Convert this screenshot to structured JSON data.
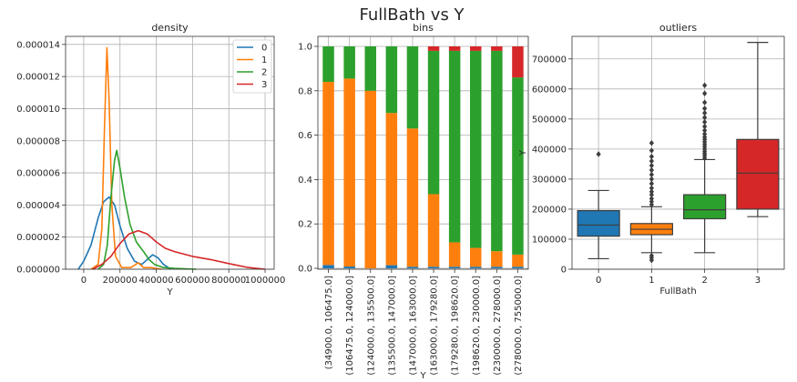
{
  "suptitle": "FullBath   vs   Y",
  "colors": {
    "c0": "#1f77b4",
    "c1": "#ff7f0e",
    "c2": "#2ca02c",
    "c3": "#d62728",
    "grid": "#b0b0b0",
    "frame": "#333333"
  },
  "chart_data": [
    {
      "type": "line",
      "title": "density",
      "xlabel": "Y",
      "ylabel": "",
      "xlim": [
        -100000,
        1050000
      ],
      "ylim": [
        0,
        1.45e-05
      ],
      "xticks": [
        0,
        200000,
        400000,
        600000,
        800000,
        1000000
      ],
      "xtick_labels": [
        "0",
        "200000",
        "400000",
        "600000",
        "800000",
        "1000000"
      ],
      "yticks": [
        0,
        2e-06,
        4e-06,
        6e-06,
        8e-06,
        1e-05,
        1.2e-05,
        1.4e-05
      ],
      "ytick_labels": [
        "0.000000",
        "0.000002",
        "0.000004",
        "0.000006",
        "0.000008",
        "0.000010",
        "0.000012",
        "0.000014"
      ],
      "grid": true,
      "legend": "top-right",
      "series": [
        {
          "name": "0",
          "color": "c0",
          "points": [
            [
              -30000,
              0
            ],
            [
              0,
              5e-07
            ],
            [
              40000,
              1.5e-06
            ],
            [
              80000,
              3.2e-06
            ],
            [
              110000,
              4.2e-06
            ],
            [
              140000,
              4.5e-06
            ],
            [
              170000,
              4e-06
            ],
            [
              200000,
              2.7e-06
            ],
            [
              240000,
              1.3e-06
            ],
            [
              280000,
              5e-07
            ],
            [
              320000,
              3e-07
            ],
            [
              350000,
              6e-07
            ],
            [
              380000,
              9e-07
            ],
            [
              410000,
              7e-07
            ],
            [
              440000,
              3e-07
            ],
            [
              480000,
              0
            ]
          ]
        },
        {
          "name": "1",
          "color": "c1",
          "points": [
            [
              40000,
              0
            ],
            [
              80000,
              3e-07
            ],
            [
              100000,
              2.5e-06
            ],
            [
              115000,
              9e-06
            ],
            [
              128000,
              1.38e-05
            ],
            [
              140000,
              1.05e-05
            ],
            [
              155000,
              4e-06
            ],
            [
              175000,
              8e-07
            ],
            [
              210000,
              1e-07
            ],
            [
              260000,
              1e-07
            ],
            [
              300000,
              4e-07
            ],
            [
              330000,
              1e-07
            ],
            [
              370000,
              1e-07
            ],
            [
              430000,
              0
            ]
          ]
        },
        {
          "name": "2",
          "color": "c2",
          "points": [
            [
              80000,
              0
            ],
            [
              110000,
              3e-07
            ],
            [
              130000,
              1.5e-06
            ],
            [
              150000,
              4.5e-06
            ],
            [
              170000,
              6.8e-06
            ],
            [
              182000,
              7.4e-06
            ],
            [
              200000,
              6.3e-06
            ],
            [
              225000,
              4.5e-06
            ],
            [
              255000,
              2.8e-06
            ],
            [
              290000,
              1.7e-06
            ],
            [
              330000,
              1.1e-06
            ],
            [
              360000,
              6e-07
            ],
            [
              390000,
              3e-07
            ],
            [
              440000,
              1e-07
            ],
            [
              500000,
              5e-08
            ],
            [
              620000,
              0
            ]
          ]
        },
        {
          "name": "3",
          "color": "c3",
          "points": [
            [
              50000,
              0
            ],
            [
              100000,
              3e-07
            ],
            [
              150000,
              8e-07
            ],
            [
              200000,
              1.6e-06
            ],
            [
              250000,
              2.2e-06
            ],
            [
              300000,
              2.4e-06
            ],
            [
              350000,
              2.2e-06
            ],
            [
              400000,
              1.7e-06
            ],
            [
              450000,
              1.3e-06
            ],
            [
              500000,
              1.1e-06
            ],
            [
              600000,
              8e-07
            ],
            [
              700000,
              6e-07
            ],
            [
              800000,
              3.5e-07
            ],
            [
              900000,
              1.2e-07
            ],
            [
              1000000,
              0
            ]
          ]
        }
      ]
    },
    {
      "type": "bar",
      "stacked": true,
      "normalized": true,
      "title": "bins",
      "xlabel": "Y",
      "ylabel": "",
      "ylim": [
        0,
        1
      ],
      "yticks": [
        0,
        0.2,
        0.4,
        0.6,
        0.8,
        1.0
      ],
      "ytick_labels": [
        "0.0",
        "0.2",
        "0.4",
        "0.6",
        "0.8",
        "1.0"
      ],
      "grid": true,
      "categories": [
        "(34900.0, 106475.0]",
        "(106475.0, 124000.0]",
        "(124000.0, 135500.0]",
        "(135500.0, 147000.0]",
        "(147000.0, 163000.0]",
        "(163000.0, 179280.0]",
        "(179280.0, 198620.0]",
        "(198620.0, 230000.0]",
        "(230000.0, 278000.0]",
        "(278000.0, 755000.0]"
      ],
      "series": [
        {
          "name": "0",
          "color": "c0",
          "values": [
            0.015,
            0.008,
            0.0,
            0.014,
            0.007,
            0.007,
            0.007,
            0.007,
            0.007,
            0.007
          ]
        },
        {
          "name": "1",
          "color": "c1",
          "values": [
            0.825,
            0.847,
            0.8,
            0.686,
            0.623,
            0.327,
            0.11,
            0.085,
            0.07,
            0.055
          ]
        },
        {
          "name": "2",
          "color": "c2",
          "values": [
            0.16,
            0.145,
            0.2,
            0.3,
            0.37,
            0.646,
            0.863,
            0.888,
            0.903,
            0.798
          ]
        },
        {
          "name": "3",
          "color": "c3",
          "values": [
            0.0,
            0.0,
            0.0,
            0.0,
            0.0,
            0.02,
            0.02,
            0.02,
            0.02,
            0.14
          ]
        }
      ]
    },
    {
      "type": "box",
      "title": "outliers",
      "xlabel": "FullBath",
      "ylabel": "Y",
      "ylim": [
        0,
        775000
      ],
      "yticks": [
        0,
        100000,
        200000,
        300000,
        400000,
        500000,
        600000,
        700000
      ],
      "ytick_labels": [
        "0",
        "100000",
        "200000",
        "300000",
        "400000",
        "500000",
        "600000",
        "700000"
      ],
      "categories": [
        "0",
        "1",
        "2",
        "3"
      ],
      "grid": true,
      "boxes": [
        {
          "name": "0",
          "color": "c0",
          "whislo": 35000,
          "q1": 110000,
          "med": 147000,
          "q3": 195000,
          "whishi": 262000,
          "fliers": [
            383000
          ]
        },
        {
          "name": "1",
          "color": "c1",
          "whislo": 55000,
          "q1": 115000,
          "med": 133000,
          "q3": 152000,
          "whishi": 208000,
          "fliers": [
            215000,
            225000,
            235000,
            248000,
            258000,
            270000,
            285000,
            300000,
            315000,
            330000,
            345000,
            360000,
            375000,
            395000,
            420000,
            45000,
            38000,
            30000
          ]
        },
        {
          "name": "2",
          "color": "c2",
          "whislo": 55000,
          "q1": 168000,
          "med": 198000,
          "q3": 248000,
          "whishi": 365000,
          "fliers": [
            370000,
            378000,
            385000,
            392000,
            400000,
            408000,
            416000,
            424000,
            432000,
            440000,
            450000,
            462000,
            475000,
            490000,
            505000,
            520000,
            535000,
            555000,
            585000,
            612000
          ]
        },
        {
          "name": "3",
          "color": "c3",
          "whislo": 175000,
          "q1": 200000,
          "med": 320000,
          "q3": 432000,
          "whishi": 755000,
          "fliers": []
        }
      ]
    }
  ]
}
